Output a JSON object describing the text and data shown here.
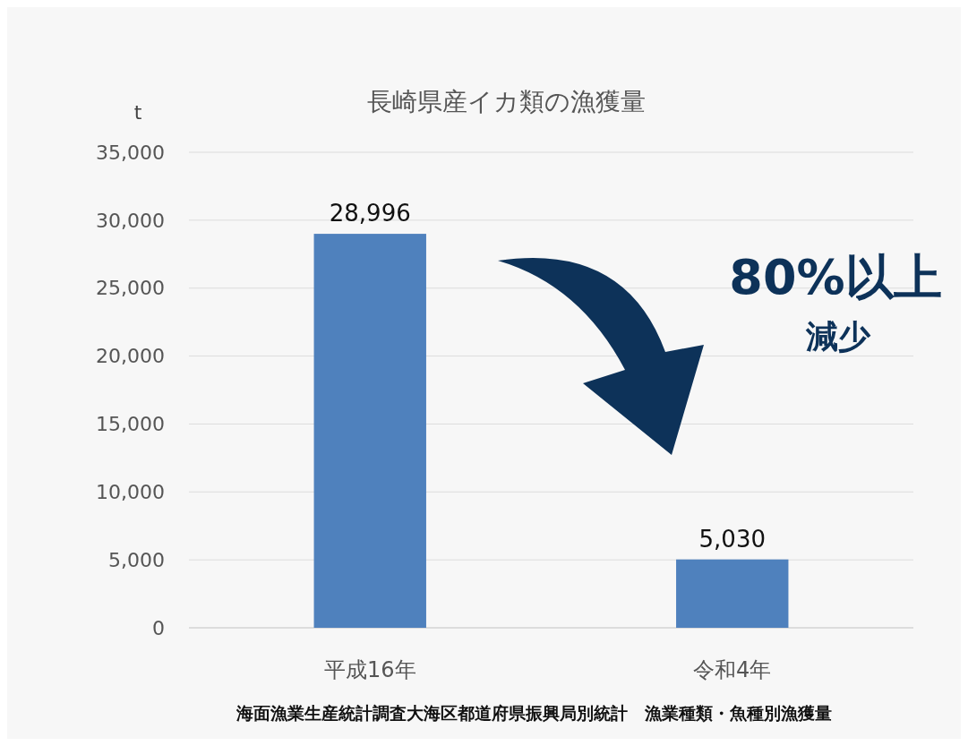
{
  "chart_data": {
    "type": "bar",
    "title": "長崎県産イカ類の漁獲量",
    "ylabel": "t",
    "categories": [
      "平成16年",
      "令和4年"
    ],
    "values": [
      28996,
      5030
    ],
    "color": "#4f81bd",
    "ylim": [
      0,
      35000
    ],
    "yticks": [
      {
        "value": 0,
        "label": "0"
      },
      {
        "value": 5000,
        "label": "5,000"
      },
      {
        "value": 10000,
        "label": "10,000"
      },
      {
        "value": 15000,
        "label": "15,000"
      },
      {
        "value": 20000,
        "label": "20,000"
      },
      {
        "value": 25000,
        "label": "25,000"
      },
      {
        "value": 30000,
        "label": "30,000"
      },
      {
        "value": 35000,
        "label": "35,000"
      }
    ],
    "grid": true,
    "value_labels": [
      "28,996",
      "5,030"
    ],
    "annotations": [
      "80%以上",
      "減少",
      "海面漁業生産統計調査大海区都道府県振興局別統計　漁業種類・魚種別漁獲量"
    ]
  }
}
